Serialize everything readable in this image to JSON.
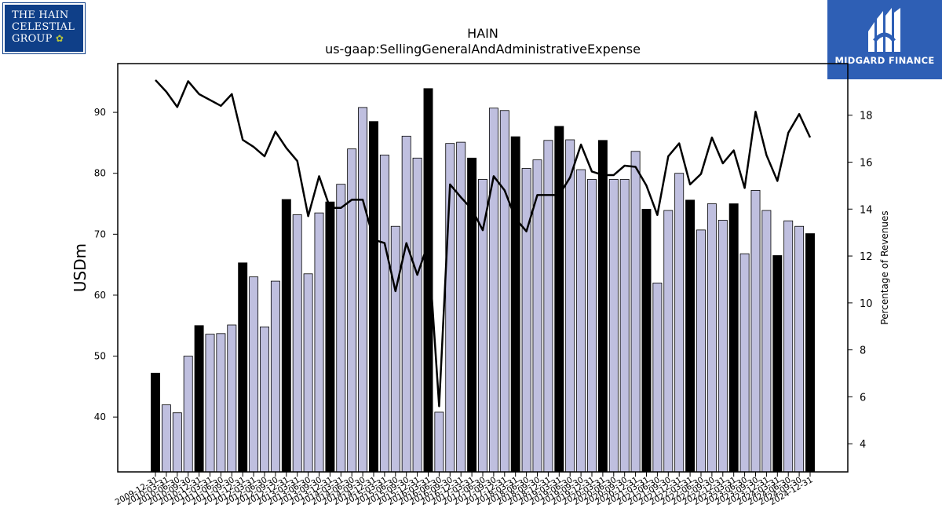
{
  "logos": {
    "left": {
      "line1": "THE HAIN",
      "line2": "CELESTIAL",
      "line3": "GROUP",
      "color": "#0f3f88"
    },
    "right": {
      "brand": "MIDGARD FINANCE",
      "color": "#2e5fb5"
    }
  },
  "chart_data": {
    "type": "bar",
    "title": "HAIN",
    "subtitle": "us-gaap:SellingGeneralAndAdministrativeExpense",
    "ylabel": "USDm",
    "y2label": "Percentage of Revenues",
    "ylim": [
      31,
      98
    ],
    "y2lim": [
      2.8,
      20.2
    ],
    "yticks": [
      40,
      50,
      60,
      70,
      80,
      90
    ],
    "y2ticks": [
      4,
      6,
      8,
      10,
      12,
      14,
      16,
      18
    ],
    "grid": false,
    "colors": {
      "annual_bar": "#000000",
      "quarter_bar": "#bfbfdf",
      "line": "#000000"
    },
    "categories": [
      "2009-12-31",
      "2010-03-31",
      "2010-06-30",
      "2010-09-30",
      "2010-12-31",
      "2011-03-31",
      "2011-06-30",
      "2011-09-30",
      "2011-12-31",
      "2012-03-31",
      "2012-06-30",
      "2012-09-30",
      "2012-12-31",
      "2013-03-31",
      "2013-06-30",
      "2013-09-30",
      "2013-12-31",
      "2014-03-31",
      "2014-06-30",
      "2014-09-30",
      "2014-12-31",
      "2015-03-31",
      "2015-06-30",
      "2015-09-30",
      "2015-12-31",
      "2016-03-31",
      "2016-06-30",
      "2016-09-30",
      "2016-12-31",
      "2017-03-31",
      "2017-06-30",
      "2017-09-30",
      "2017-12-31",
      "2018-03-31",
      "2018-06-30",
      "2018-09-30",
      "2018-12-31",
      "2019-03-31",
      "2019-06-30",
      "2019-09-30",
      "2019-12-31",
      "2020-03-31",
      "2020-06-30",
      "2020-09-30",
      "2020-12-31",
      "2021-03-31",
      "2021-06-30",
      "2021-09-30",
      "2021-12-31",
      "2022-03-31",
      "2022-06-30",
      "2022-09-30",
      "2022-12-31",
      "2023-03-31",
      "2023-06-30",
      "2023-09-30",
      "2023-12-31",
      "2024-03-31",
      "2024-06-30",
      "2024-09-30",
      "2024-12-31"
    ],
    "series": [
      {
        "values": [
          47.2,
          42.0,
          40.7,
          50.0,
          55.0,
          53.6,
          53.7,
          55.1,
          65.3,
          63.0,
          54.8,
          62.3,
          75.7,
          73.2,
          63.5,
          73.5,
          75.3,
          78.2,
          84.0,
          90.8,
          88.5,
          83.0,
          71.3,
          86.1,
          82.5,
          93.9,
          40.8,
          84.9,
          85.1,
          82.5,
          79.0,
          90.7,
          90.3,
          86.0,
          80.8,
          82.2,
          85.4,
          87.7,
          85.5,
          80.6,
          79.0,
          85.4,
          79.0,
          79.0,
          83.6,
          74.1,
          62.0,
          73.9,
          80.0,
          75.6,
          70.7,
          75.0,
          72.3,
          75.0,
          66.8,
          77.2,
          73.9,
          66.5,
          72.2,
          71.3,
          70.1
        ]
      },
      {
        "values": [
          19.5,
          19.0,
          18.35,
          19.45,
          18.9,
          18.65,
          18.4,
          18.9,
          16.95,
          16.65,
          16.25,
          17.3,
          16.6,
          16.05,
          13.7,
          15.4,
          14.05,
          14.05,
          14.4,
          14.4,
          12.7,
          12.55,
          10.5,
          12.55,
          11.2,
          12.55,
          5.6,
          15.05,
          14.5,
          14.0,
          13.1,
          15.4,
          14.8,
          13.6,
          13.05,
          14.6,
          14.6,
          14.6,
          15.35,
          16.75,
          15.6,
          15.45,
          15.45,
          15.85,
          15.8,
          15.0,
          13.75,
          16.25,
          16.8,
          15.05,
          15.5,
          17.05,
          15.95,
          16.5,
          14.9,
          18.15,
          16.3,
          15.2,
          17.25,
          18.05,
          17.05
        ]
      }
    ]
  }
}
